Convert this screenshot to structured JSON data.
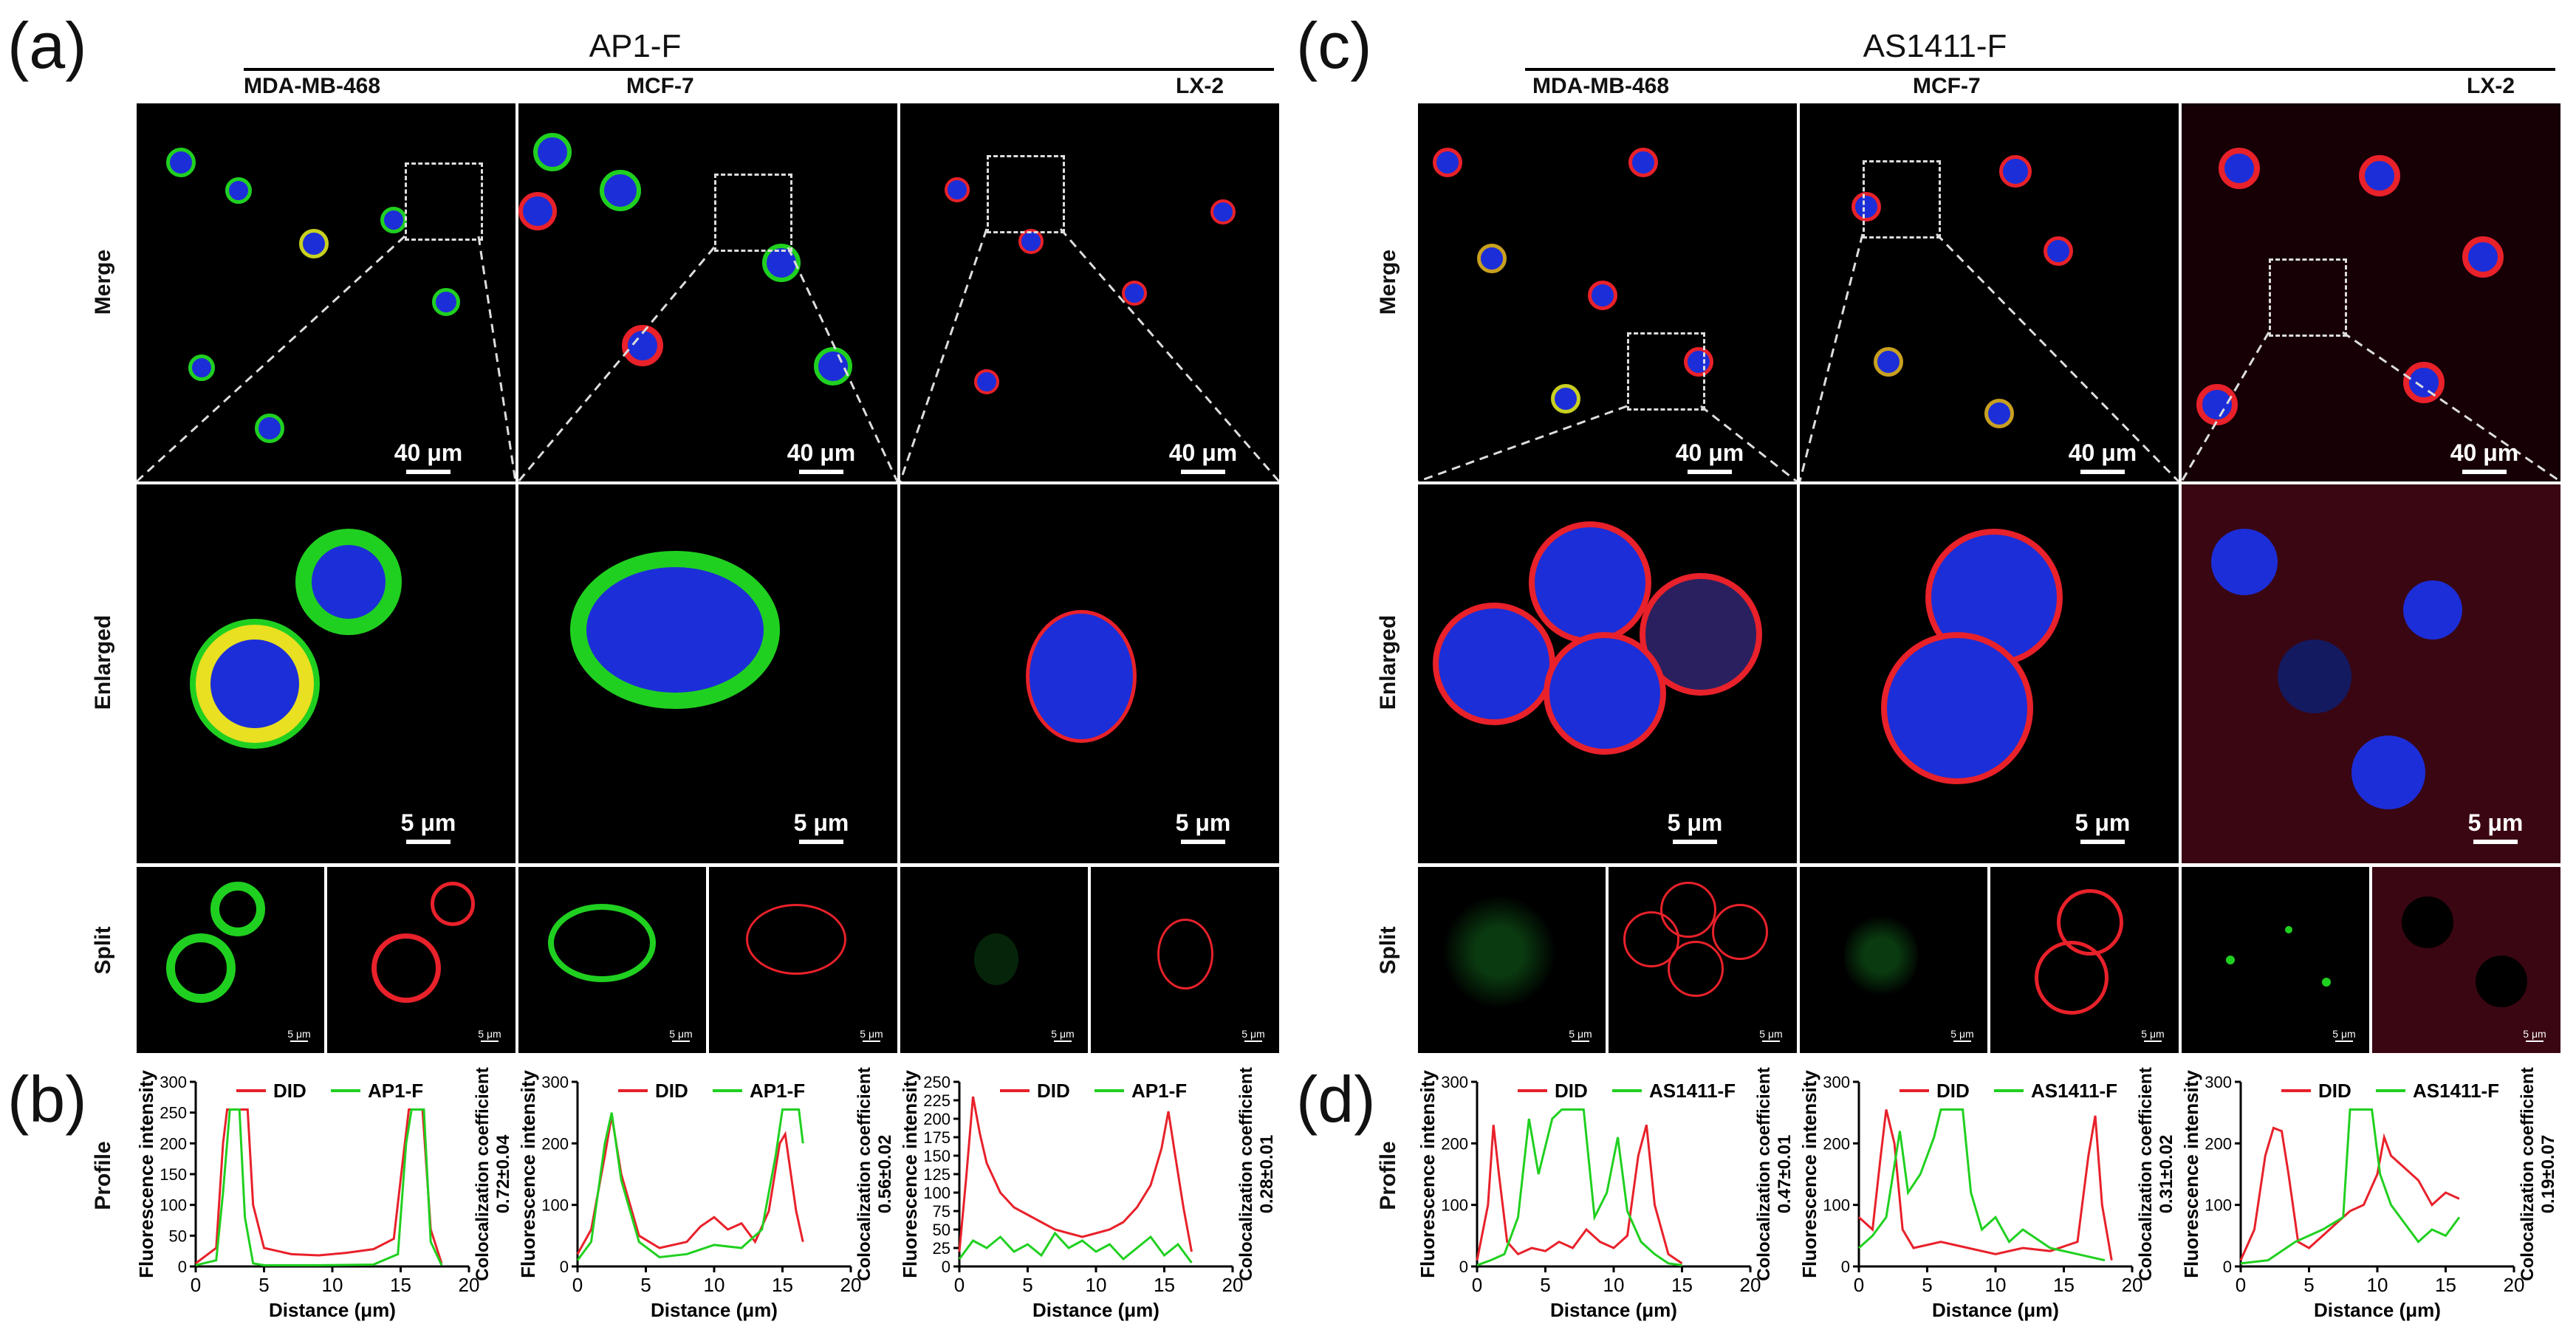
{
  "panels": {
    "a": {
      "letter": "(a)",
      "title": "AP1-F",
      "columns": [
        "MDA-MB-468",
        "MCF-7",
        "LX-2"
      ]
    },
    "b": {
      "letter": "(b)"
    },
    "c": {
      "letter": "(c)",
      "title": "AS1411-F",
      "columns": [
        "MDA-MB-468",
        "MCF-7",
        "LX-2"
      ]
    },
    "d": {
      "letter": "(d)"
    }
  },
  "row_labels": {
    "merge": "Merge",
    "enlarged": "Enlarged",
    "split": "Split",
    "profile": "Profile"
  },
  "scale_bars": {
    "merge": "40 μm",
    "enlarged": "5 μm",
    "split": "5 μm"
  },
  "colors": {
    "did": "#e8212a",
    "probe": "#20d020",
    "nucleus": "#1c2ed8",
    "bg": "#000000"
  },
  "chart_data": [
    {
      "type": "line",
      "panel": "b",
      "cell_line": "MDA-MB-468",
      "xlabel": "Distance (μm)",
      "ylabel": "Fluorescence intensity",
      "xlim": [
        0,
        20
      ],
      "ylim": [
        0,
        300
      ],
      "xticks": [
        0,
        5,
        10,
        15,
        20
      ],
      "yticks": [
        0,
        50,
        100,
        150,
        200,
        250,
        300
      ],
      "legend": [
        "DID",
        "AP1-F"
      ],
      "coloc_label": "Colocalization coefficient",
      "coloc_value": "0.72±0.04",
      "series": [
        {
          "name": "DID",
          "x": [
            0,
            1.5,
            2.0,
            2.3,
            3.8,
            4.2,
            5,
            7,
            9,
            11,
            13,
            14.5,
            15.2,
            15.6,
            16.6,
            17.2,
            18
          ],
          "y": [
            5,
            30,
            200,
            255,
            255,
            100,
            30,
            20,
            18,
            22,
            28,
            45,
            180,
            255,
            255,
            60,
            5
          ]
        },
        {
          "name": "AP1-F",
          "x": [
            0,
            1.5,
            2.0,
            2.5,
            3.2,
            3.6,
            4.2,
            5,
            9,
            13,
            14.8,
            15.4,
            15.8,
            16.7,
            17.2,
            18
          ],
          "y": [
            2,
            10,
            120,
            255,
            255,
            80,
            5,
            2,
            2,
            3,
            20,
            200,
            255,
            255,
            40,
            2
          ]
        }
      ]
    },
    {
      "type": "line",
      "panel": "b",
      "cell_line": "MCF-7",
      "xlabel": "Distance (μm)",
      "ylabel": "Fluorescence intensity",
      "xlim": [
        0,
        20
      ],
      "ylim": [
        0,
        300
      ],
      "xticks": [
        0,
        5,
        10,
        15,
        20
      ],
      "yticks": [
        0,
        100,
        200,
        300
      ],
      "legend": [
        "DID",
        "AP1-F"
      ],
      "coloc_label": "Colocalization coefficient",
      "coloc_value": "0.56±0.02",
      "series": [
        {
          "name": "DID",
          "x": [
            0,
            1,
            2,
            2.5,
            3.2,
            4.5,
            6,
            8,
            9,
            10,
            11,
            12,
            13,
            14,
            14.8,
            15.2,
            16,
            16.5
          ],
          "y": [
            20,
            60,
            180,
            245,
            150,
            50,
            30,
            40,
            65,
            80,
            60,
            70,
            40,
            90,
            200,
            215,
            90,
            40
          ]
        },
        {
          "name": "AP1-F",
          "x": [
            0,
            1,
            2,
            2.5,
            3.2,
            4.5,
            6,
            8,
            10,
            12,
            13.5,
            14.5,
            15,
            15.5,
            16.2,
            16.5
          ],
          "y": [
            10,
            40,
            200,
            250,
            140,
            40,
            15,
            20,
            35,
            30,
            60,
            180,
            255,
            255,
            255,
            200
          ]
        }
      ]
    },
    {
      "type": "line",
      "panel": "b",
      "cell_line": "LX-2",
      "xlabel": "Distance (μm)",
      "ylabel": "Fluorescence intensity",
      "xlim": [
        0,
        20
      ],
      "ylim": [
        0,
        250
      ],
      "xticks": [
        0,
        5,
        10,
        15,
        20
      ],
      "yticks": [
        0,
        25,
        50,
        75,
        100,
        125,
        150,
        175,
        200,
        225,
        250
      ],
      "legend": [
        "DID",
        "AP1-F"
      ],
      "coloc_label": "Colocalization coefficient",
      "coloc_value": "0.28±0.01",
      "series": [
        {
          "name": "DID",
          "x": [
            0,
            0.5,
            1,
            1.5,
            2,
            3,
            4,
            5,
            6,
            7,
            8,
            9,
            10,
            11,
            12,
            13,
            14,
            14.8,
            15.3,
            15.8,
            16.4,
            17
          ],
          "y": [
            20,
            120,
            230,
            180,
            140,
            100,
            80,
            70,
            60,
            50,
            45,
            40,
            45,
            50,
            60,
            80,
            110,
            160,
            210,
            150,
            80,
            20
          ]
        },
        {
          "name": "AP1-F",
          "x": [
            0,
            1,
            2,
            3,
            4,
            5,
            6,
            7,
            8,
            9,
            10,
            11,
            12,
            13,
            14,
            15,
            16,
            17
          ],
          "y": [
            10,
            35,
            25,
            40,
            20,
            30,
            15,
            45,
            25,
            35,
            20,
            30,
            10,
            25,
            40,
            15,
            30,
            5
          ]
        }
      ]
    },
    {
      "type": "line",
      "panel": "d",
      "cell_line": "MDA-MB-468",
      "xlabel": "Distance (μm)",
      "ylabel": "Fluorescence intensity",
      "xlim": [
        0,
        20
      ],
      "ylim": [
        0,
        300
      ],
      "xticks": [
        0,
        5,
        10,
        15,
        20
      ],
      "yticks": [
        0,
        100,
        200,
        300
      ],
      "legend": [
        "DID",
        "AS1411-F"
      ],
      "coloc_label": "Colocalization coefficient",
      "coloc_value": "0.47±0.01",
      "series": [
        {
          "name": "DID",
          "x": [
            0,
            0.8,
            1.2,
            1.6,
            2.2,
            3,
            4,
            5,
            6,
            7,
            8,
            9,
            10,
            11,
            11.8,
            12.4,
            13,
            14,
            15
          ],
          "y": [
            10,
            100,
            230,
            150,
            40,
            20,
            30,
            25,
            40,
            30,
            60,
            40,
            30,
            50,
            180,
            230,
            100,
            20,
            5
          ]
        },
        {
          "name": "AS1411-F",
          "x": [
            0,
            1,
            2,
            3,
            3.8,
            4.5,
            5.5,
            6.2,
            7,
            7.8,
            8.6,
            9.5,
            10.3,
            11,
            12,
            13,
            14,
            15
          ],
          "y": [
            2,
            10,
            20,
            80,
            240,
            150,
            240,
            255,
            255,
            255,
            80,
            120,
            210,
            90,
            40,
            20,
            5,
            2
          ]
        }
      ]
    },
    {
      "type": "line",
      "panel": "d",
      "cell_line": "MCF-7",
      "xlabel": "Distance (μm)",
      "ylabel": "Fluorescence intensity",
      "xlim": [
        0,
        20
      ],
      "ylim": [
        0,
        300
      ],
      "xticks": [
        0,
        5,
        10,
        15,
        20
      ],
      "yticks": [
        0,
        100,
        200,
        300
      ],
      "legend": [
        "DID",
        "AS1411-F"
      ],
      "coloc_label": "Colocalization coefficient",
      "coloc_value": "0.31±0.02",
      "series": [
        {
          "name": "DID",
          "x": [
            0,
            1,
            1.6,
            2,
            2.6,
            3.2,
            4,
            6,
            8,
            10,
            12,
            14,
            16,
            16.8,
            17.3,
            17.8,
            18.5
          ],
          "y": [
            80,
            60,
            180,
            255,
            200,
            60,
            30,
            40,
            30,
            20,
            30,
            25,
            40,
            180,
            245,
            100,
            10
          ]
        },
        {
          "name": "AS1411-F",
          "x": [
            0,
            1,
            2,
            3,
            3.6,
            4.5,
            5.5,
            6,
            7,
            7.6,
            8.2,
            9,
            10,
            11,
            12,
            14,
            16,
            18
          ],
          "y": [
            30,
            50,
            80,
            220,
            120,
            150,
            210,
            255,
            255,
            255,
            120,
            60,
            80,
            40,
            60,
            30,
            20,
            10
          ]
        }
      ]
    },
    {
      "type": "line",
      "panel": "d",
      "cell_line": "LX-2",
      "xlabel": "Distance (μm)",
      "ylabel": "Fluorescence intensity",
      "xlim": [
        0,
        20
      ],
      "ylim": [
        0,
        300
      ],
      "xticks": [
        0,
        5,
        10,
        15,
        20
      ],
      "yticks": [
        0,
        100,
        200,
        300
      ],
      "legend": [
        "DID",
        "AS1411-F"
      ],
      "coloc_label": "Colocalization coefficient",
      "coloc_value": "0.19±0.07",
      "series": [
        {
          "name": "DID",
          "x": [
            0,
            1,
            1.8,
            2.4,
            3,
            3.5,
            4.2,
            5,
            6,
            7,
            8,
            9,
            10,
            10.5,
            11,
            12,
            13,
            14,
            15,
            16
          ],
          "y": [
            10,
            60,
            180,
            225,
            220,
            150,
            40,
            30,
            50,
            70,
            90,
            100,
            150,
            210,
            180,
            160,
            140,
            100,
            120,
            110
          ]
        },
        {
          "name": "AS1411-F",
          "x": [
            0,
            2,
            4,
            6,
            7.5,
            8,
            9,
            9.6,
            10.2,
            11,
            12,
            13,
            14,
            15,
            16
          ],
          "y": [
            5,
            10,
            40,
            60,
            80,
            255,
            255,
            255,
            150,
            100,
            70,
            40,
            60,
            50,
            80
          ]
        }
      ]
    }
  ]
}
